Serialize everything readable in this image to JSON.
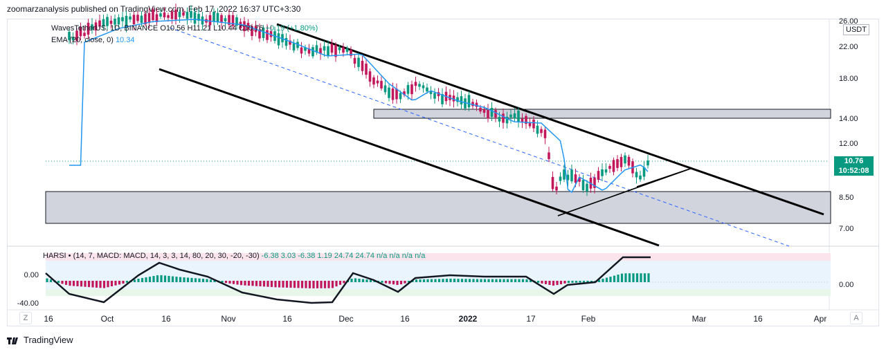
{
  "header": {
    "published": "zoomarzanalysis published on TradingView.com, Feb 17, 2022 16:37 UTC+3:30"
  },
  "legend": {
    "symbol": "WavesTetherUS, 1D, BINANCE",
    "open": "O10.56",
    "high": "H11.21",
    "low": "L10.44",
    "close": "C10.76",
    "change": "+0.19 (+1.80%)",
    "ema_label": "EMA (20, close, 0)",
    "ema_value": "10.34"
  },
  "currency": "USDT",
  "price_axis": {
    "labels": [
      "26.00",
      "22.00",
      "18.00",
      "14.00",
      "12.00",
      "8.50",
      "7.00"
    ]
  },
  "price_tag": {
    "price": "10.76",
    "countdown": "10:52:08"
  },
  "oscillator": {
    "legend_name": "HARSI",
    "legend_params": "(14, 7, MACD: MACD, 14, 3, 3, 14, 80, 20, 30, -20, -30)",
    "legend_values": "-6.38  3.03  -6.38  1.19  24.74  24.74  n/a  n/a  n/a  n/a",
    "left_labels": [
      "0.00",
      "-40.00"
    ],
    "right_label": "0.00"
  },
  "time_axis": [
    "16",
    "Oct",
    "16",
    "Nov",
    "16",
    "Dec",
    "16",
    "2022",
    "17",
    "Feb",
    "Mar",
    "16",
    "Apr"
  ],
  "buttons": {
    "zoom": "Z",
    "auto": "A"
  },
  "footer": {
    "brand": "TradingView"
  },
  "colors": {
    "up": "#089981",
    "down": "#c2185b",
    "ema": "#2196f3",
    "zone": "#d1d4dc",
    "ob": "#fce4ec",
    "os": "#e8f5e9"
  },
  "chart_data": {
    "type": "candlestick",
    "symbol": "WavesTetherUS",
    "interval": "1D",
    "exchange": "BINANCE",
    "y_ticks": [
      26,
      22,
      18,
      14,
      12,
      8.5,
      7
    ],
    "last_close": 10.76,
    "ema_last": 10.34,
    "x_ticks": [
      "16",
      "Oct",
      "16",
      "Nov",
      "16",
      "Dec",
      "16",
      "2022",
      "17",
      "Feb",
      "Mar",
      "16",
      "Apr"
    ]
  }
}
